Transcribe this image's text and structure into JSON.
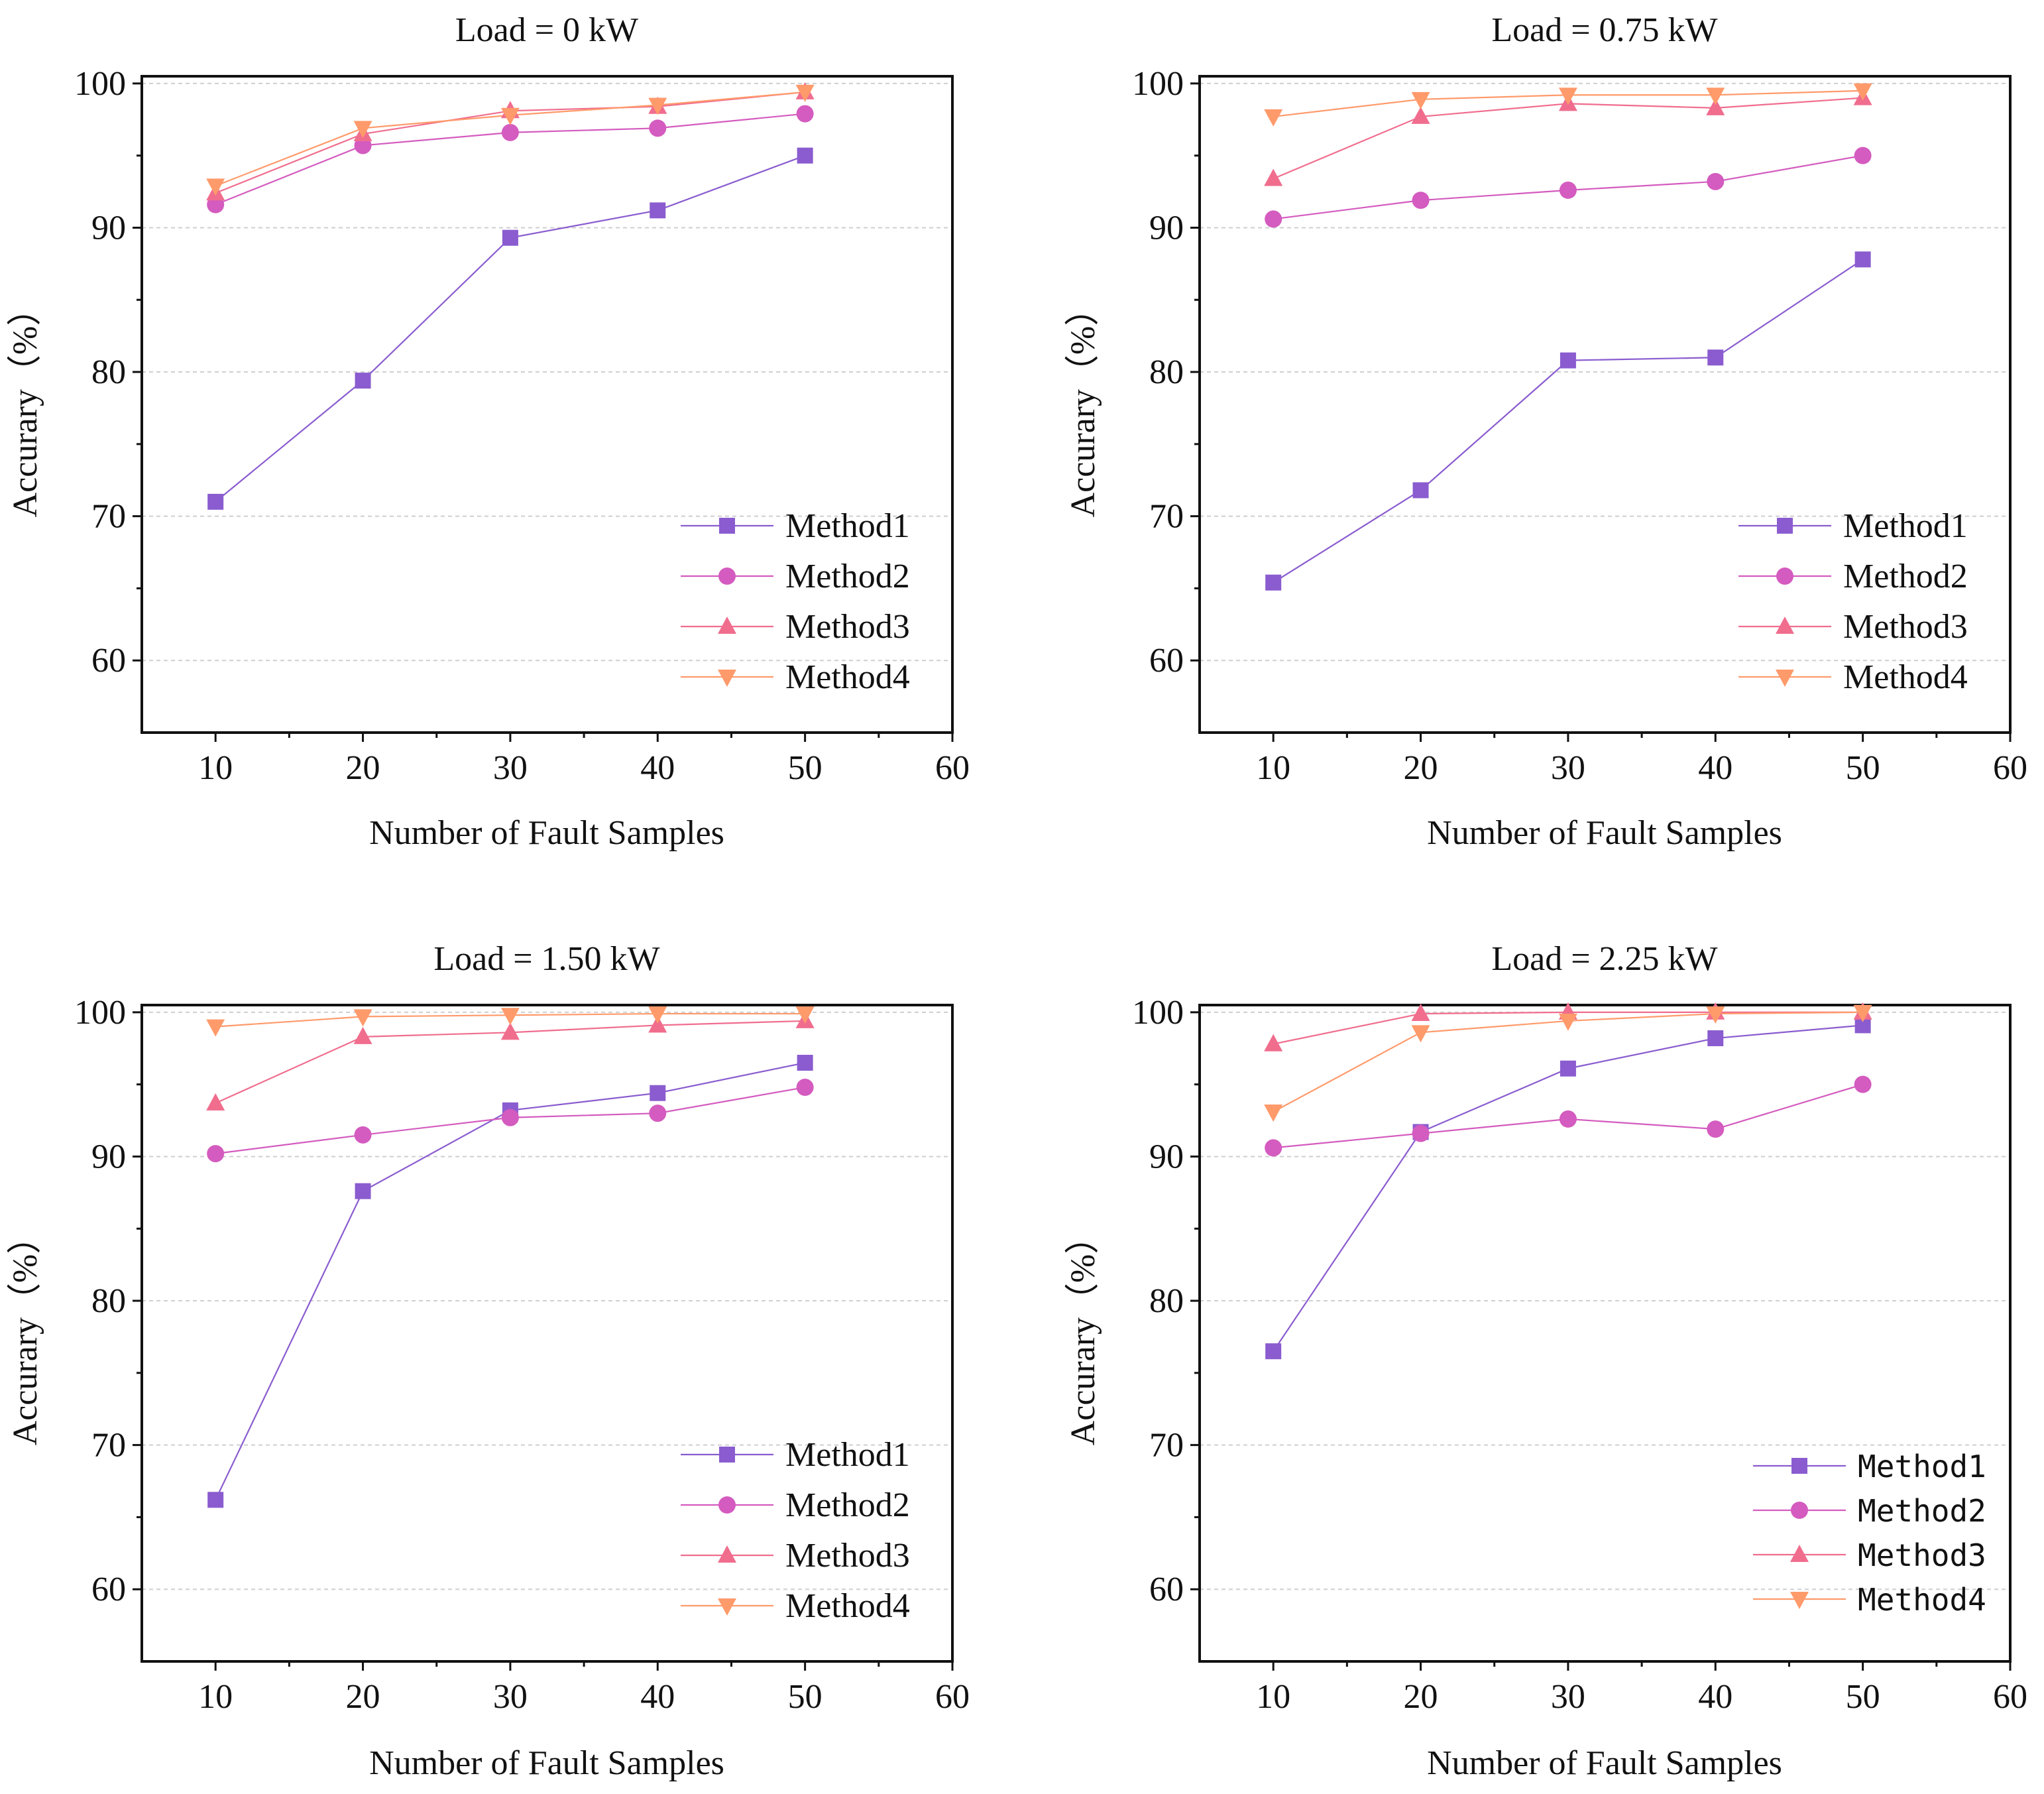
{
  "chart_data": [
    {
      "type": "line",
      "title": "Load = 0 kW",
      "xlabel": "Number of Fault Samples",
      "ylabel": "Accurary（%）",
      "xlim": [
        5,
        60
      ],
      "ylim": [
        55,
        100.5
      ],
      "xticks": [
        10,
        20,
        30,
        40,
        50,
        60
      ],
      "yticks": [
        60,
        70,
        80,
        90,
        100
      ],
      "grid": true,
      "legend_position": "bottom-right",
      "legend_style": "serif",
      "x": [
        10,
        20,
        30,
        40,
        50
      ],
      "series": [
        {
          "name": "Method1",
          "marker": "square",
          "color": "#8a5ccf",
          "values": [
            71.0,
            79.4,
            89.3,
            91.2,
            95.0
          ]
        },
        {
          "name": "Method2",
          "marker": "circle",
          "color": "#d45bbf",
          "values": [
            91.6,
            95.7,
            96.6,
            96.9,
            97.9
          ]
        },
        {
          "name": "Method3",
          "marker": "triangle-up",
          "color": "#f06d8e",
          "values": [
            92.4,
            96.5,
            98.1,
            98.4,
            99.4
          ]
        },
        {
          "name": "Method4",
          "marker": "triangle-down",
          "color": "#ff9a6b",
          "values": [
            92.9,
            96.9,
            97.8,
            98.5,
            99.4
          ]
        }
      ]
    },
    {
      "type": "line",
      "title": "Load = 0.75 kW",
      "xlabel": "Number of Fault Samples",
      "ylabel": "Accurary（%）",
      "xlim": [
        5,
        60
      ],
      "ylim": [
        55,
        100.5
      ],
      "xticks": [
        10,
        20,
        30,
        40,
        50,
        60
      ],
      "yticks": [
        60,
        70,
        80,
        90,
        100
      ],
      "grid": true,
      "legend_position": "bottom-right",
      "legend_style": "serif",
      "x": [
        10,
        20,
        30,
        40,
        50
      ],
      "series": [
        {
          "name": "Method1",
          "marker": "square",
          "color": "#8a5ccf",
          "values": [
            65.4,
            71.8,
            80.8,
            81.0,
            87.8
          ]
        },
        {
          "name": "Method2",
          "marker": "circle",
          "color": "#d45bbf",
          "values": [
            90.6,
            91.9,
            92.6,
            93.2,
            95.0
          ]
        },
        {
          "name": "Method3",
          "marker": "triangle-up",
          "color": "#f06d8e",
          "values": [
            93.4,
            97.7,
            98.6,
            98.3,
            99.0
          ]
        },
        {
          "name": "Method4",
          "marker": "triangle-down",
          "color": "#ff9a6b",
          "values": [
            97.7,
            98.9,
            99.2,
            99.2,
            99.5
          ]
        }
      ]
    },
    {
      "type": "line",
      "title": "Load = 1.50 kW",
      "xlabel": "Number of Fault Samples",
      "ylabel": "Accurary（%）",
      "xlim": [
        5,
        60
      ],
      "ylim": [
        55,
        100.5
      ],
      "xticks": [
        10,
        20,
        30,
        40,
        50,
        60
      ],
      "yticks": [
        60,
        70,
        80,
        90,
        100
      ],
      "grid": true,
      "legend_position": "bottom-right",
      "legend_style": "serif",
      "x": [
        10,
        20,
        30,
        40,
        50
      ],
      "series": [
        {
          "name": "Method1",
          "marker": "square",
          "color": "#8a5ccf",
          "values": [
            66.2,
            87.6,
            93.2,
            94.4,
            96.5
          ]
        },
        {
          "name": "Method2",
          "marker": "circle",
          "color": "#d45bbf",
          "values": [
            90.2,
            91.5,
            92.7,
            93.0,
            94.8
          ]
        },
        {
          "name": "Method3",
          "marker": "triangle-up",
          "color": "#f06d8e",
          "values": [
            93.7,
            98.3,
            98.6,
            99.1,
            99.4
          ]
        },
        {
          "name": "Method4",
          "marker": "triangle-down",
          "color": "#ff9a6b",
          "values": [
            99.0,
            99.7,
            99.8,
            99.9,
            99.9
          ]
        }
      ]
    },
    {
      "type": "line",
      "title": "Load = 2.25 kW",
      "xlabel": "Number of Fault Samples",
      "ylabel": "Accurary（%）",
      "xlim": [
        5,
        60
      ],
      "ylim": [
        55,
        100.5
      ],
      "xticks": [
        10,
        20,
        30,
        40,
        50,
        60
      ],
      "yticks": [
        60,
        70,
        80,
        90,
        100
      ],
      "grid": true,
      "legend_position": "bottom-right",
      "legend_style": "monospace",
      "x": [
        10,
        20,
        30,
        40,
        50
      ],
      "series": [
        {
          "name": "Method1",
          "marker": "square",
          "color": "#8a5ccf",
          "values": [
            76.5,
            91.7,
            96.1,
            98.2,
            99.1
          ]
        },
        {
          "name": "Method2",
          "marker": "circle",
          "color": "#d45bbf",
          "values": [
            90.6,
            91.6,
            92.6,
            91.9,
            95.0
          ]
        },
        {
          "name": "Method3",
          "marker": "triangle-up",
          "color": "#f06d8e",
          "values": [
            97.8,
            99.9,
            100.0,
            100.0,
            100.0
          ]
        },
        {
          "name": "Method4",
          "marker": "triangle-down",
          "color": "#ff9a6b",
          "values": [
            93.1,
            98.6,
            99.4,
            99.9,
            100.0
          ]
        }
      ]
    }
  ]
}
